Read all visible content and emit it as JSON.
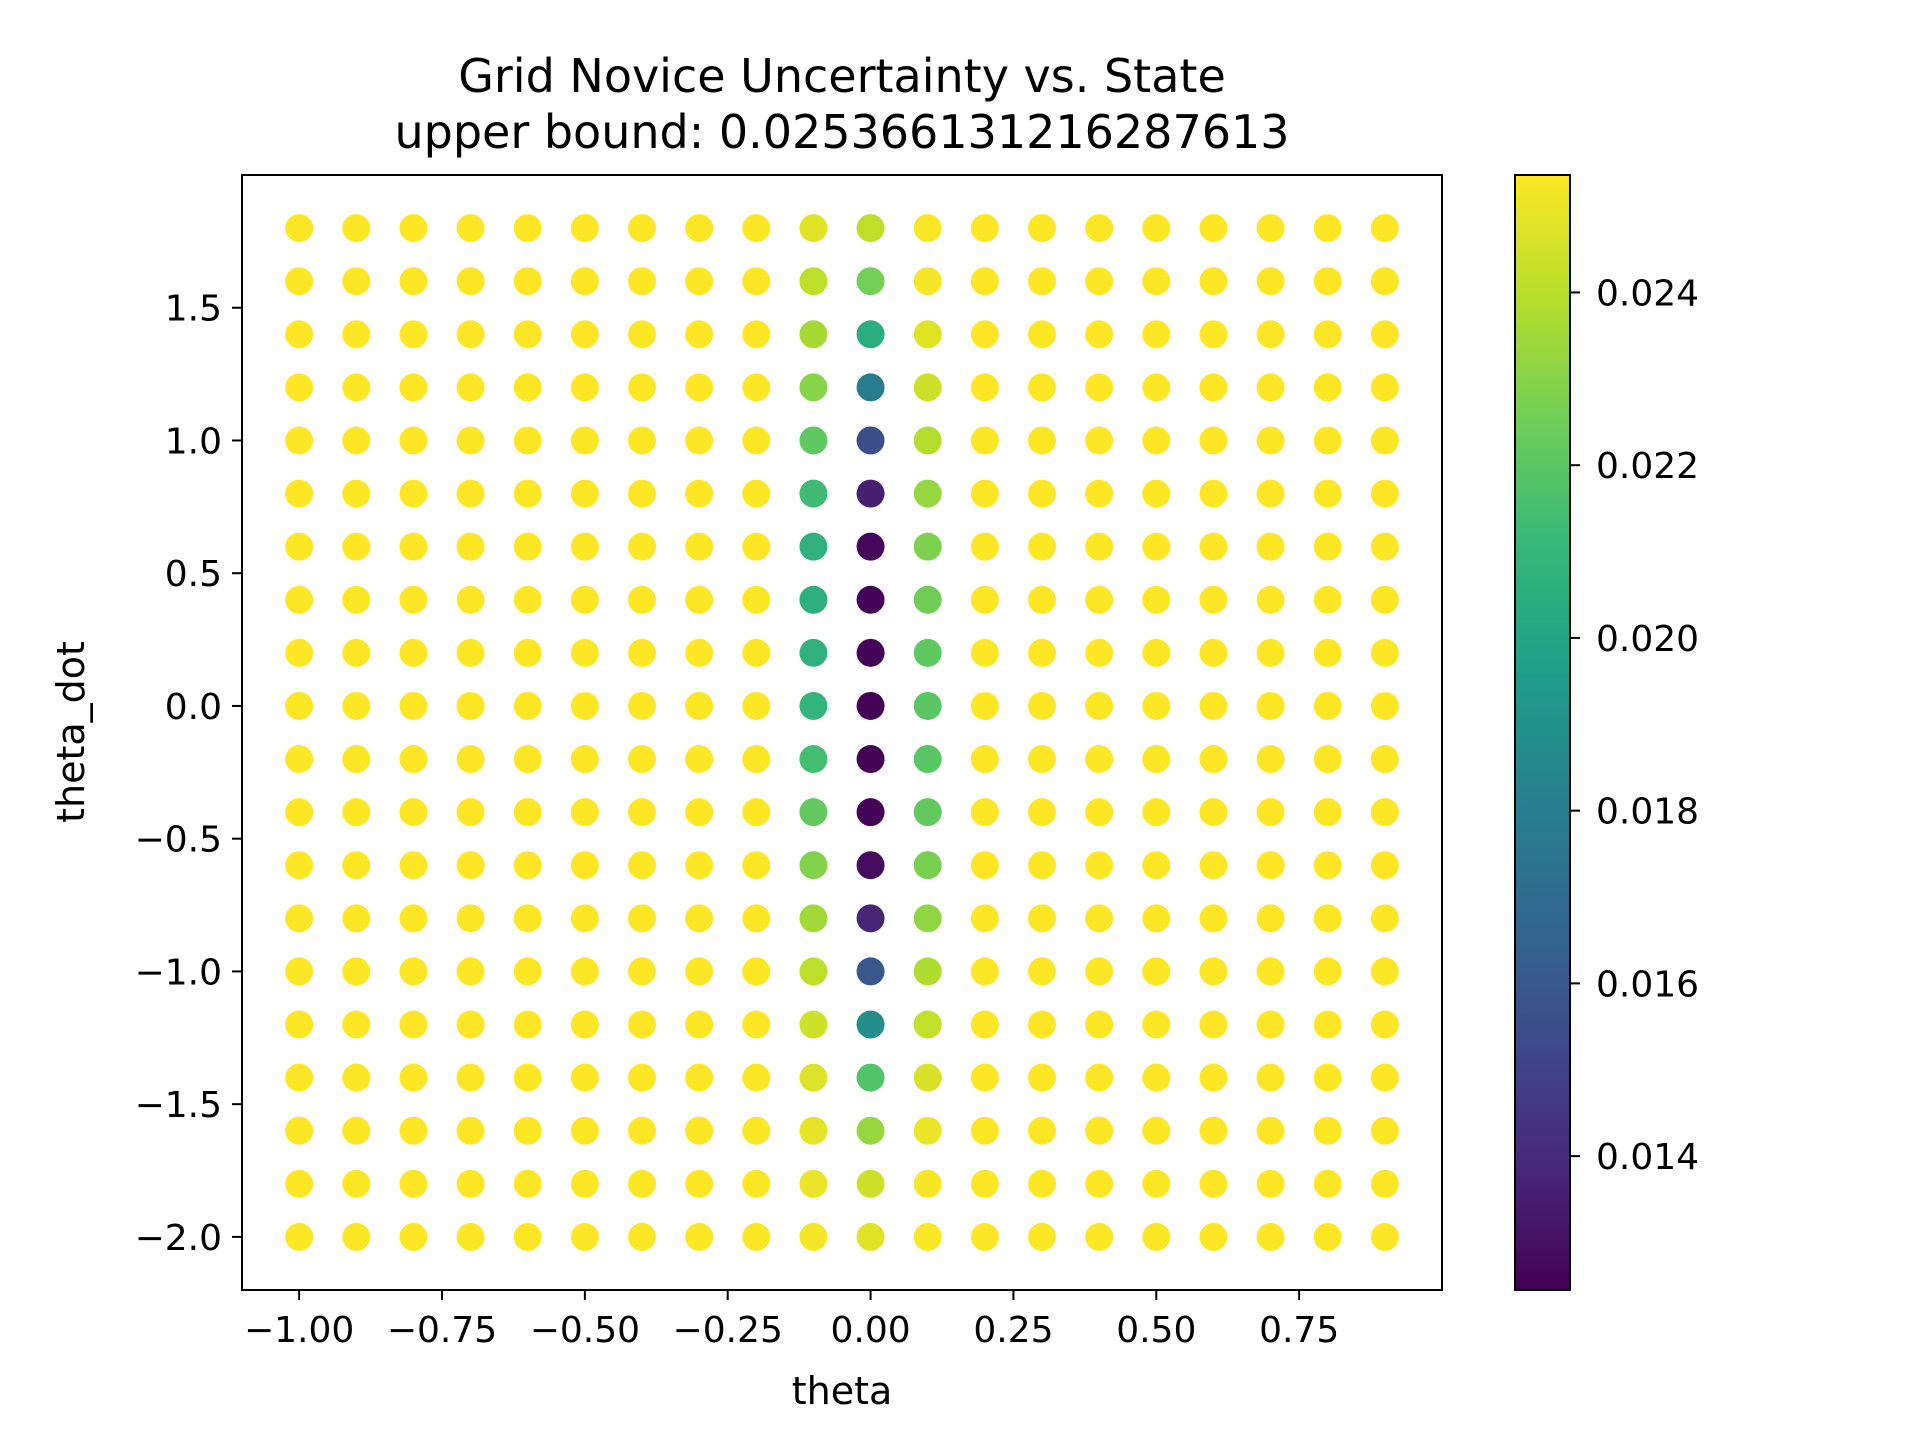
{
  "chart_data": {
    "type": "scatter",
    "title": "Grid Novice Uncertainty vs. State",
    "subtitle": "upper bound: 0.025366131216287613",
    "xlabel": "theta",
    "ylabel": "theta_dot",
    "xlim": [
      -1.1,
      1.0
    ],
    "ylim": [
      -2.2,
      2.0
    ],
    "x_ticks": [
      -1.0,
      -0.75,
      -0.5,
      -0.25,
      0.0,
      0.25,
      0.5,
      0.75
    ],
    "x_tick_labels": [
      "−1.00",
      "−0.75",
      "−0.50",
      "−0.25",
      "0.00",
      "0.25",
      "0.50",
      "0.75"
    ],
    "y_ticks": [
      -2.0,
      -1.5,
      -1.0,
      -0.5,
      0.0,
      0.5,
      1.0,
      1.5
    ],
    "y_tick_labels": [
      "−2.0",
      "−1.5",
      "−1.0",
      "−0.5",
      "0.0",
      "0.5",
      "1.0",
      "1.5"
    ],
    "grid": false,
    "x": [
      -1.0,
      -0.9,
      -0.8,
      -0.7,
      -0.6,
      -0.5,
      -0.4,
      -0.3,
      -0.2,
      -0.1,
      0.0,
      0.1,
      0.2,
      0.3,
      0.4,
      0.5,
      0.6,
      0.7,
      0.8,
      0.9
    ],
    "y": [
      -2.0,
      -1.8,
      -1.6,
      -1.4,
      -1.2,
      -1.0,
      -0.8,
      -0.6,
      -0.4,
      -0.2,
      0.0,
      0.2,
      0.4,
      0.6,
      0.8,
      1.0,
      1.2,
      1.4,
      1.6,
      1.8
    ],
    "default_value": 0.02536,
    "value_overrides": {
      "x=-0.1": [
        0.0252,
        0.025,
        0.0249,
        0.0247,
        0.0244,
        0.0241,
        0.0235,
        0.0229,
        0.0222,
        0.0214,
        0.0209,
        0.0207,
        0.0206,
        0.0207,
        0.0213,
        0.0221,
        0.023,
        0.0236,
        0.0241,
        0.0248
      ],
      "x=0.0": [
        0.0248,
        0.0244,
        0.0233,
        0.0218,
        0.0188,
        0.016,
        0.0138,
        0.0128,
        0.0126,
        0.0125,
        0.0125,
        0.0126,
        0.0126,
        0.0127,
        0.0136,
        0.0155,
        0.0178,
        0.0205,
        0.0226,
        0.0241
      ],
      "x=0.1": [
        0.0253,
        0.0252,
        0.025,
        0.0246,
        0.0242,
        0.0238,
        0.0232,
        0.0227,
        0.0222,
        0.022,
        0.022,
        0.0221,
        0.0225,
        0.0228,
        0.0233,
        0.0239,
        0.0244,
        0.0248,
        0.0252,
        0.0253
      ]
    },
    "colorbar": {
      "colormap": "viridis",
      "min": 0.01245,
      "max": 0.02536,
      "ticks": [
        0.014,
        0.016,
        0.018,
        0.02,
        0.022,
        0.024
      ],
      "tick_labels": [
        "0.014",
        "0.016",
        "0.018",
        "0.020",
        "0.022",
        "0.024"
      ]
    }
  }
}
